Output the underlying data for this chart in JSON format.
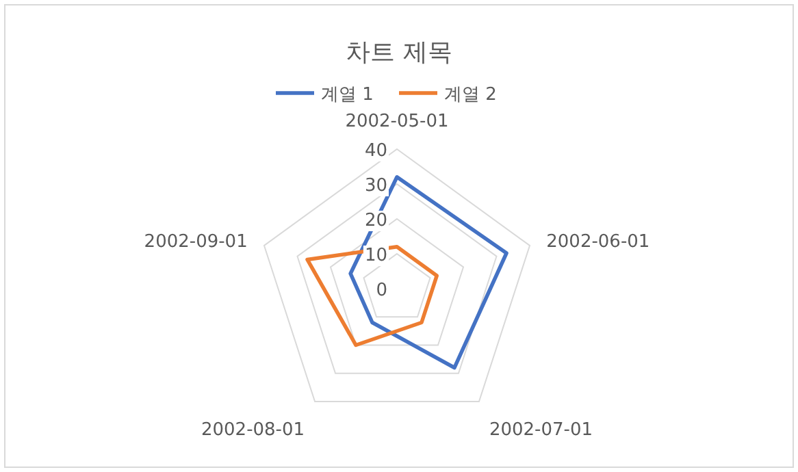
{
  "chart_data": {
    "type": "radar",
    "title": "차트 제목",
    "categories": [
      "2002-05-01",
      "2002-06-01",
      "2002-07-01",
      "2002-08-01",
      "2002-09-01"
    ],
    "series": [
      {
        "name": "계열 1",
        "color": "#4472c4",
        "values": [
          32,
          33,
          28,
          12,
          14
        ]
      },
      {
        "name": "계열 2",
        "color": "#ed7d31",
        "values": [
          12,
          12,
          12,
          20,
          27
        ]
      }
    ],
    "ylim": [
      0,
      40
    ],
    "yticks": [
      0,
      10,
      20,
      30,
      40
    ],
    "grid": true,
    "legend": "top"
  }
}
